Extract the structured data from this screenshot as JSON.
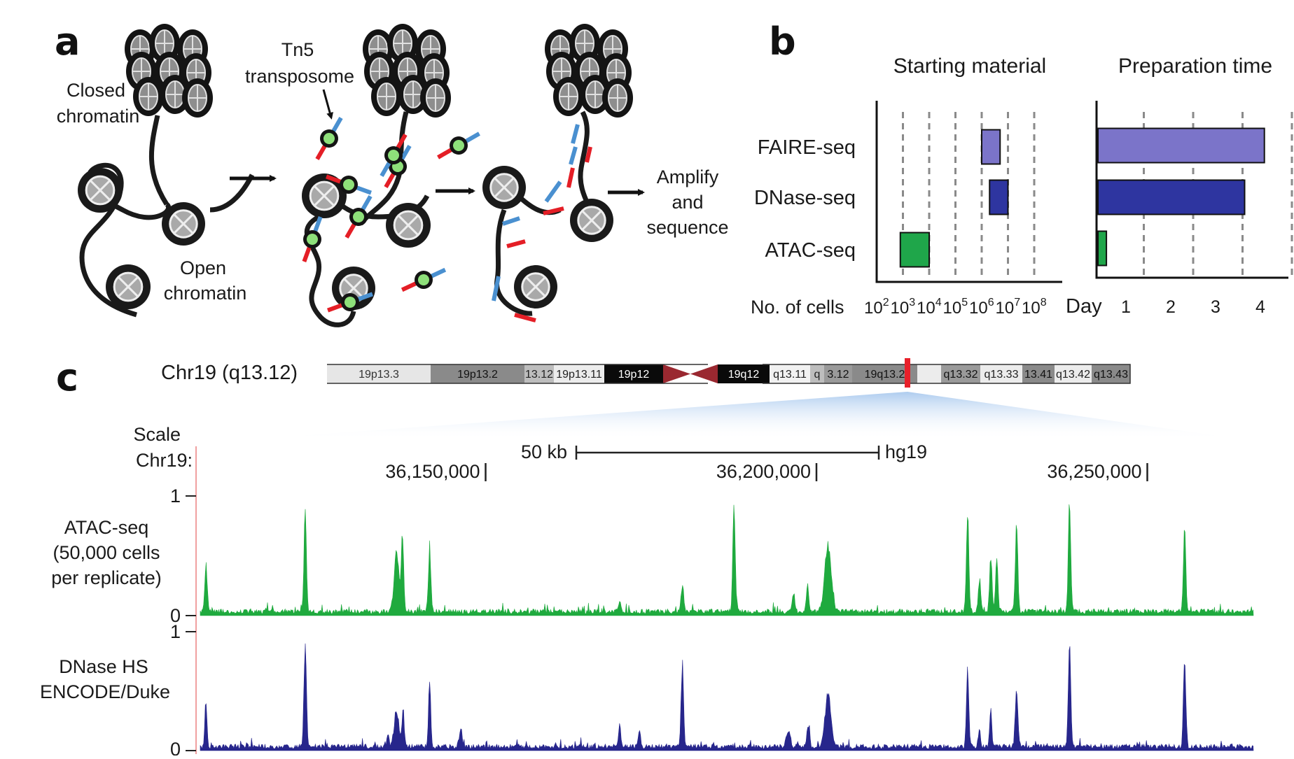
{
  "panel_a": {
    "label": "a",
    "closed_chromatin_line1": "Closed",
    "closed_chromatin_line2": "chromatin",
    "open_chromatin_line1": "Open",
    "open_chromatin_line2": "chromatin",
    "tn5_line1": "Tn5",
    "tn5_line2": "transposome",
    "amplify_line1": "Amplify",
    "amplify_line2": "and",
    "amplify_line3": "sequence"
  },
  "panel_b": {
    "label": "b",
    "starting_title": "Starting material",
    "prep_title": "Preparation time",
    "cells_axis_label": "No. of cells",
    "day_axis_label": "Day",
    "cell_ticks": [
      {
        "base": "10",
        "exp": "2"
      },
      {
        "base": "10",
        "exp": "3"
      },
      {
        "base": "10",
        "exp": "4"
      },
      {
        "base": "10",
        "exp": "5"
      },
      {
        "base": "10",
        "exp": "6"
      },
      {
        "base": "10",
        "exp": "7"
      },
      {
        "base": "10",
        "exp": "8"
      }
    ],
    "day_ticks": [
      "1",
      "2",
      "3",
      "4"
    ]
  },
  "chart_data": [
    {
      "type": "bar",
      "orientation": "horizontal",
      "title": "Starting material",
      "xlabel": "No. of cells",
      "x_scale": "log10",
      "categories": [
        "FAIRE-seq",
        "DNase-seq",
        "ATAC-seq"
      ],
      "ranges_log10": [
        [
          6.0,
          6.7
        ],
        [
          6.3,
          7.0
        ],
        [
          2.9,
          4.0
        ]
      ],
      "colors": [
        "#7b74c9",
        "#2e35a0",
        "#1fa64a"
      ]
    },
    {
      "type": "bar",
      "orientation": "horizontal",
      "title": "Preparation time",
      "xlabel": "Day",
      "categories": [
        "FAIRE-seq",
        "DNase-seq",
        "ATAC-seq"
      ],
      "values_days": [
        3.4,
        3.0,
        0.2
      ],
      "colors": [
        "#7b74c9",
        "#2e35a0",
        "#1fa64a"
      ]
    },
    {
      "type": "area",
      "title": "",
      "chromosome": "Chr19",
      "x_range": [
        36120000,
        36280000
      ],
      "x_ticks": [
        "36,150,000",
        "36,200,000",
        "36,250,000"
      ],
      "y_range": [
        0,
        1
      ],
      "series": [
        {
          "name": "ATAC-seq",
          "color": "#1faa3e",
          "peaks": [
            [
              36121500,
              0.42,
              450
            ],
            [
              36136500,
              0.88,
              450
            ],
            [
              36150300,
              0.52,
              900
            ],
            [
              36151200,
              0.67,
              450
            ],
            [
              36155300,
              0.58,
              450
            ],
            [
              36184000,
              0.08,
              500
            ],
            [
              36193500,
              0.24,
              450
            ],
            [
              36201300,
              1.0,
              450
            ],
            [
              36210300,
              0.16,
              500
            ],
            [
              36212400,
              0.25,
              450
            ],
            [
              36215500,
              0.6,
              1200
            ],
            [
              36236600,
              0.88,
              450
            ],
            [
              36238400,
              0.28,
              450
            ],
            [
              36240100,
              0.5,
              450
            ],
            [
              36241000,
              0.48,
              450
            ],
            [
              36244000,
              0.82,
              450
            ],
            [
              36252000,
              0.98,
              450
            ],
            [
              36269400,
              0.74,
              450
            ]
          ]
        },
        {
          "name": "DNase HS",
          "color": "#27268c",
          "peaks": [
            [
              36121500,
              0.42,
              400
            ],
            [
              36136500,
              0.98,
              450
            ],
            [
              36149000,
              0.1,
              400
            ],
            [
              36150300,
              0.3,
              900
            ],
            [
              36151300,
              0.35,
              400
            ],
            [
              36155300,
              0.6,
              400
            ],
            [
              36160000,
              0.18,
              500
            ],
            [
              36184000,
              0.2,
              400
            ],
            [
              36187000,
              0.15,
              400
            ],
            [
              36193500,
              0.73,
              450
            ],
            [
              36209500,
              0.15,
              700
            ],
            [
              36212500,
              0.2,
              500
            ],
            [
              36215500,
              0.47,
              1100
            ],
            [
              36236600,
              0.7,
              450
            ],
            [
              36238400,
              0.14,
              400
            ],
            [
              36240100,
              0.34,
              400
            ],
            [
              36244000,
              0.52,
              500
            ],
            [
              36252000,
              0.96,
              450
            ],
            [
              36269400,
              0.8,
              450
            ]
          ]
        }
      ]
    }
  ],
  "panel_c": {
    "label": "c",
    "chr_label": "Chr19 (q13.12)",
    "bands": [
      {
        "name": "19p13.3",
        "w": 148,
        "fill": "#e6e6e6",
        "text": "#333"
      },
      {
        "name": "19p13.2",
        "w": 134,
        "fill": "#8a8a8a",
        "text": "#111"
      },
      {
        "name": "13.12",
        "w": 42,
        "fill": "#bdbdbd",
        "text": "#222"
      },
      {
        "name": "19p13.11",
        "w": 72,
        "fill": "#ececec",
        "text": "#222"
      },
      {
        "name": "19p12",
        "w": 84,
        "fill": "#0a0a0a",
        "text": "#ffffff"
      },
      {
        "name": "",
        "w": 78,
        "fill": "centromere",
        "text": "#000"
      },
      {
        "name": "19q12",
        "w": 74,
        "fill": "#0a0a0a",
        "text": "#ffffff"
      },
      {
        "name": "q13.11",
        "w": 58,
        "fill": "#f1f1f1",
        "text": "#222"
      },
      {
        "name": "q",
        "w": 20,
        "fill": "#bdbdbd",
        "text": "#222"
      },
      {
        "name": "3.12",
        "w": 40,
        "fill": "#9a9a9a",
        "text": "#111"
      },
      {
        "name": "19q13.2",
        "w": 93,
        "fill": "#8a8a8a",
        "text": "#111"
      },
      {
        "name": "",
        "w": 34,
        "fill": "#ececec",
        "text": "#222"
      },
      {
        "name": "q13.32",
        "w": 56,
        "fill": "#9a9a9a",
        "text": "#111"
      },
      {
        "name": "q13.33",
        "w": 60,
        "fill": "#ececec",
        "text": "#222"
      },
      {
        "name": "13.41",
        "w": 46,
        "fill": "#8a8a8a",
        "text": "#111"
      },
      {
        "name": "q13.42",
        "w": 53,
        "fill": "#ececec",
        "text": "#222"
      },
      {
        "name": "q13.43",
        "w": 55,
        "fill": "#8a8a8a",
        "text": "#111"
      }
    ],
    "scale_label": "Scale",
    "chr19_label": "Chr19:",
    "scale_bar_label": "50 kb",
    "assembly_label": "hg19",
    "coord_ticks": [
      "36,150,000",
      "36,200,000",
      "36,250,000"
    ],
    "atac_line1": "ATAC-seq",
    "atac_line2": "(50,000 cells",
    "atac_line3": "per replicate)",
    "dnase_line1": "DNase HS",
    "dnase_line2": "ENCODE/Duke",
    "y_top": "1",
    "y_bottom": "0"
  }
}
